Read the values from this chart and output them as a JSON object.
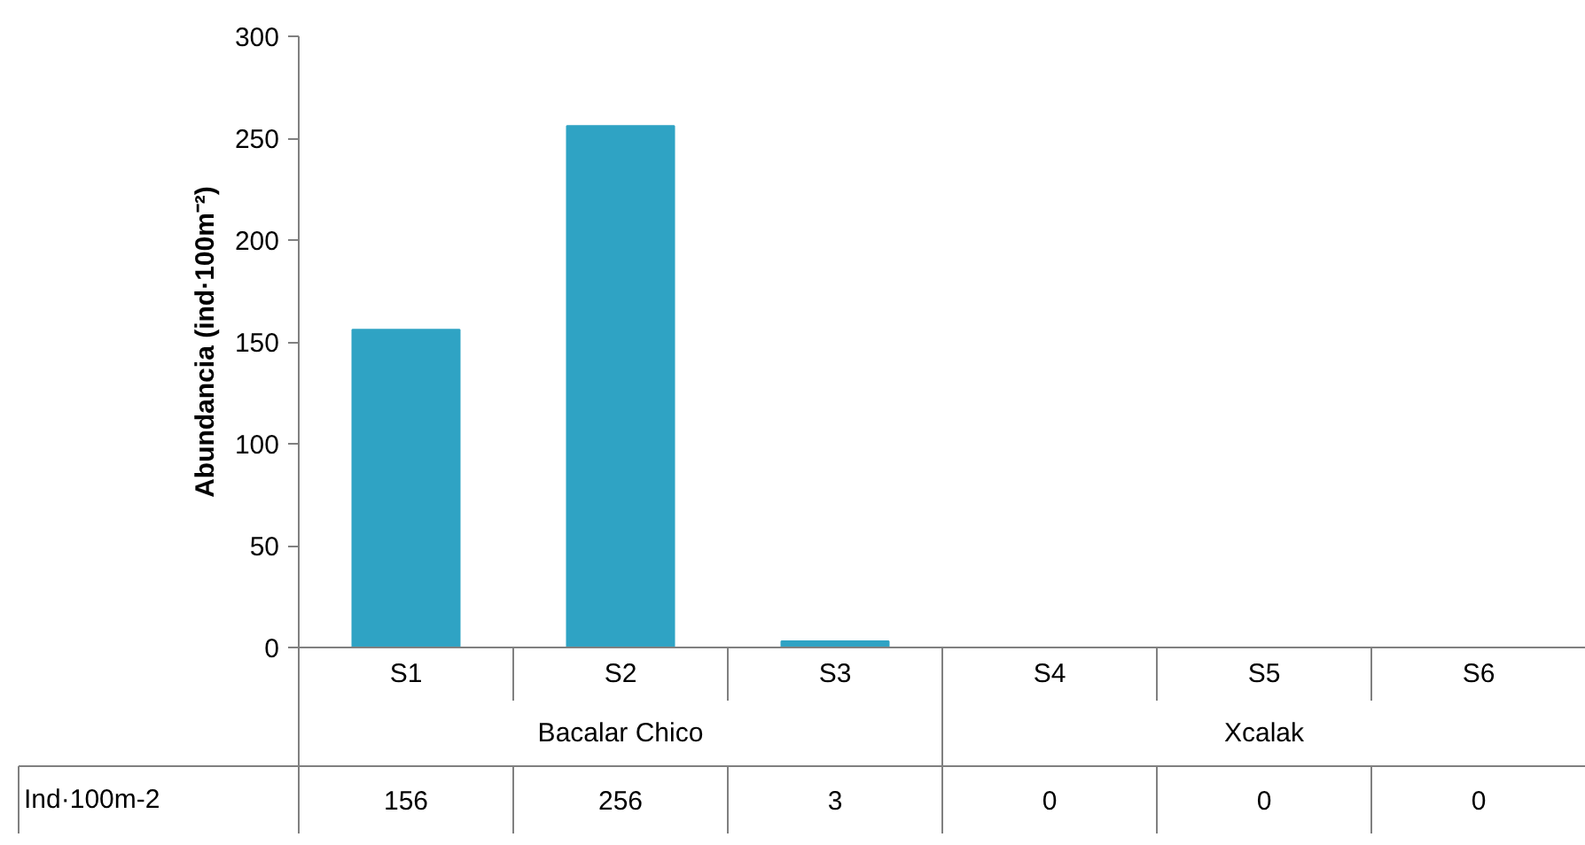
{
  "chart_data": {
    "type": "bar",
    "ylabel": "Abundancia (ind·100m⁻²)",
    "categories": [
      "S1",
      "S2",
      "S3",
      "S4",
      "S5",
      "S6"
    ],
    "series": [
      {
        "name": "Ind·100m-2",
        "color": "#2fa3c4",
        "values": [
          156,
          256,
          3,
          0,
          0,
          0
        ]
      }
    ],
    "ylim": [
      0,
      300
    ],
    "yticks": [
      0,
      50,
      100,
      150,
      200,
      250,
      300
    ],
    "data_labels": true,
    "legend": false,
    "grid": false,
    "annotations": [
      "Bacalar Chico",
      "Xcalak"
    ]
  }
}
